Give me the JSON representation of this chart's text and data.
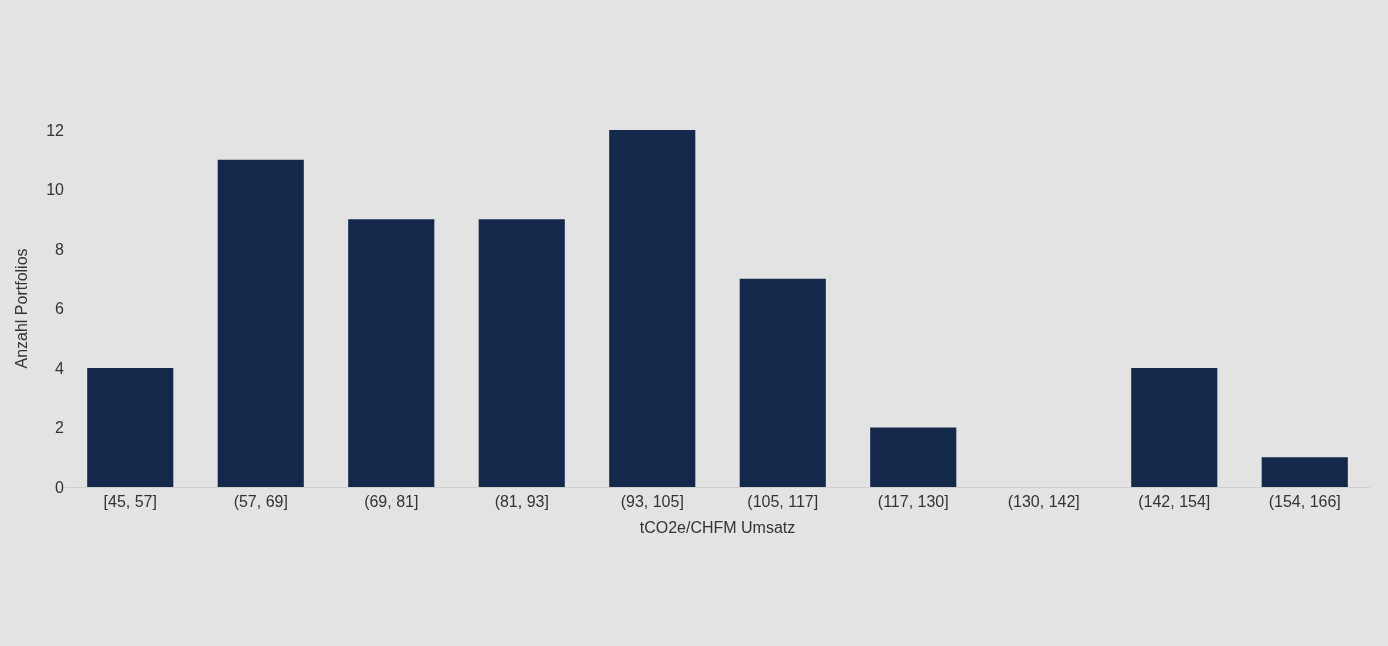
{
  "chart_data": {
    "type": "bar",
    "categories": [
      "[45, 57]",
      "(57, 69]",
      "(69, 81]",
      "(81, 93]",
      "(93, 105]",
      "(105, 117]",
      "(117, 130]",
      "(130, 142]",
      "(142, 154]",
      "(154, 166]"
    ],
    "values": [
      4,
      11,
      9,
      9,
      12,
      7,
      2,
      0,
      4,
      1
    ],
    "color": "#14284b",
    "xlabel": "tCO2e/CHFM Umsatz",
    "ylabel": "Anzahl Portfolios",
    "ylim": [
      0,
      12
    ],
    "yticks": [
      0,
      2,
      4,
      6,
      8,
      10,
      12
    ],
    "grid": false,
    "legend": false
  }
}
